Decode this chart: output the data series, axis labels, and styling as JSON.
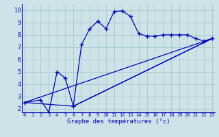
{
  "xlabel": "Graphe des températures (°c)",
  "bg_color": "#cce4e8",
  "grid_color": "#aacccc",
  "line_color": "#0000bb",
  "x_ticks": [
    0,
    1,
    2,
    3,
    4,
    5,
    6,
    7,
    8,
    9,
    10,
    11,
    12,
    13,
    14,
    15,
    16,
    17,
    18,
    19,
    20,
    21,
    22,
    23
  ],
  "y_ticks": [
    2,
    3,
    4,
    5,
    6,
    7,
    8,
    9,
    10
  ],
  "xlim": [
    -0.3,
    23.3
  ],
  "ylim": [
    1.7,
    10.5
  ],
  "line1_x": [
    0,
    2,
    3,
    4,
    5,
    6,
    7,
    8,
    9,
    10,
    11,
    12,
    13,
    14,
    15,
    16,
    17,
    18,
    19,
    20,
    21,
    22,
    23
  ],
  "line1_y": [
    2.5,
    2.7,
    1.7,
    5.0,
    4.5,
    2.2,
    7.2,
    8.5,
    9.1,
    8.5,
    9.9,
    9.95,
    9.5,
    8.1,
    7.9,
    7.9,
    8.0,
    8.0,
    8.0,
    8.0,
    7.7,
    7.5,
    7.7
  ],
  "line2_x": [
    0,
    6,
    23
  ],
  "line2_y": [
    2.5,
    2.2,
    7.7
  ],
  "line3_x": [
    0,
    23
  ],
  "line3_y": [
    2.5,
    7.7
  ],
  "line4_x": [
    6,
    23
  ],
  "line4_y": [
    2.2,
    7.7
  ]
}
